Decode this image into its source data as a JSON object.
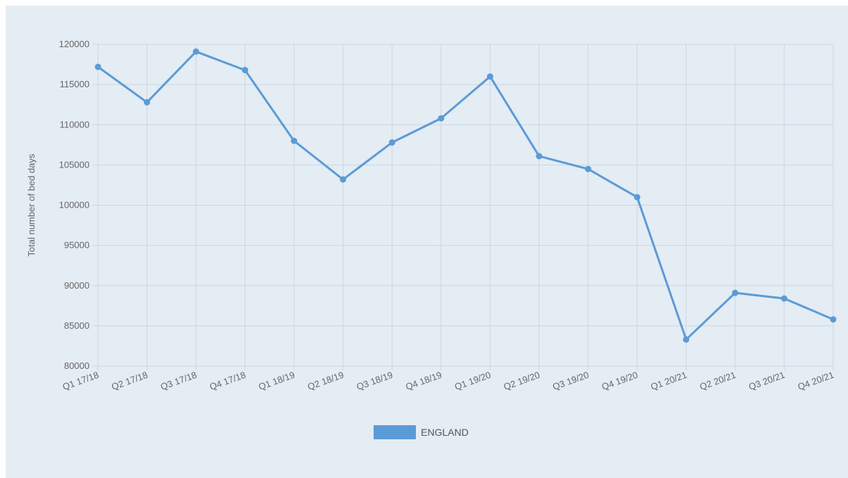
{
  "chart_data": {
    "type": "line",
    "categories": [
      "Q1 17/18",
      "Q2 17/18",
      "Q3 17/18",
      "Q4 17/18",
      "Q1 18/19",
      "Q2 18/19",
      "Q3 18/19",
      "Q4 18/19",
      "Q1 19/20",
      "Q2 19/20",
      "Q3 19/20",
      "Q4 19/20",
      "Q1 20/21",
      "Q2 20/21",
      "Q3 20/21",
      "Q4 20/21"
    ],
    "series": [
      {
        "name": "ENGLAND",
        "values": [
          117200,
          112800,
          119100,
          116800,
          108000,
          103200,
          107800,
          110800,
          116000,
          106100,
          104500,
          101000,
          83300,
          89100,
          88400,
          85800
        ]
      }
    ],
    "ylabel": "Total number of bed days",
    "xlabel": "",
    "ylim": [
      80000,
      120000
    ],
    "yticks": [
      80000,
      85000,
      90000,
      95000,
      100000,
      105000,
      110000,
      115000,
      120000
    ],
    "grid": true,
    "legend": "bottom",
    "colors": {
      "line": "#5b9bd5",
      "grid": "#cdd6df",
      "background": "#e4ecf4"
    }
  }
}
